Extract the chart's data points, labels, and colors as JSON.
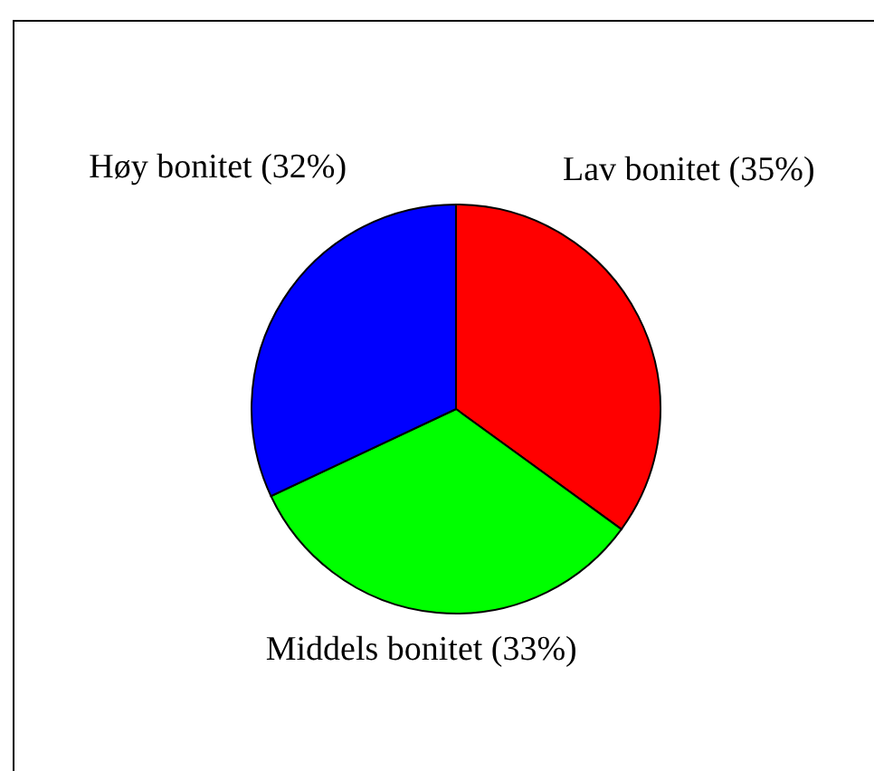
{
  "chart_data": {
    "type": "pie",
    "categories": [
      "Lav bonitet",
      "Middels bonitet",
      "Høy bonitet"
    ],
    "values": [
      35,
      33,
      32
    ],
    "value_labels": [
      "(35%)",
      "(33%)",
      "(32%)"
    ],
    "colors": [
      "#ff0000",
      "#00ff00",
      "#0000ff"
    ]
  }
}
